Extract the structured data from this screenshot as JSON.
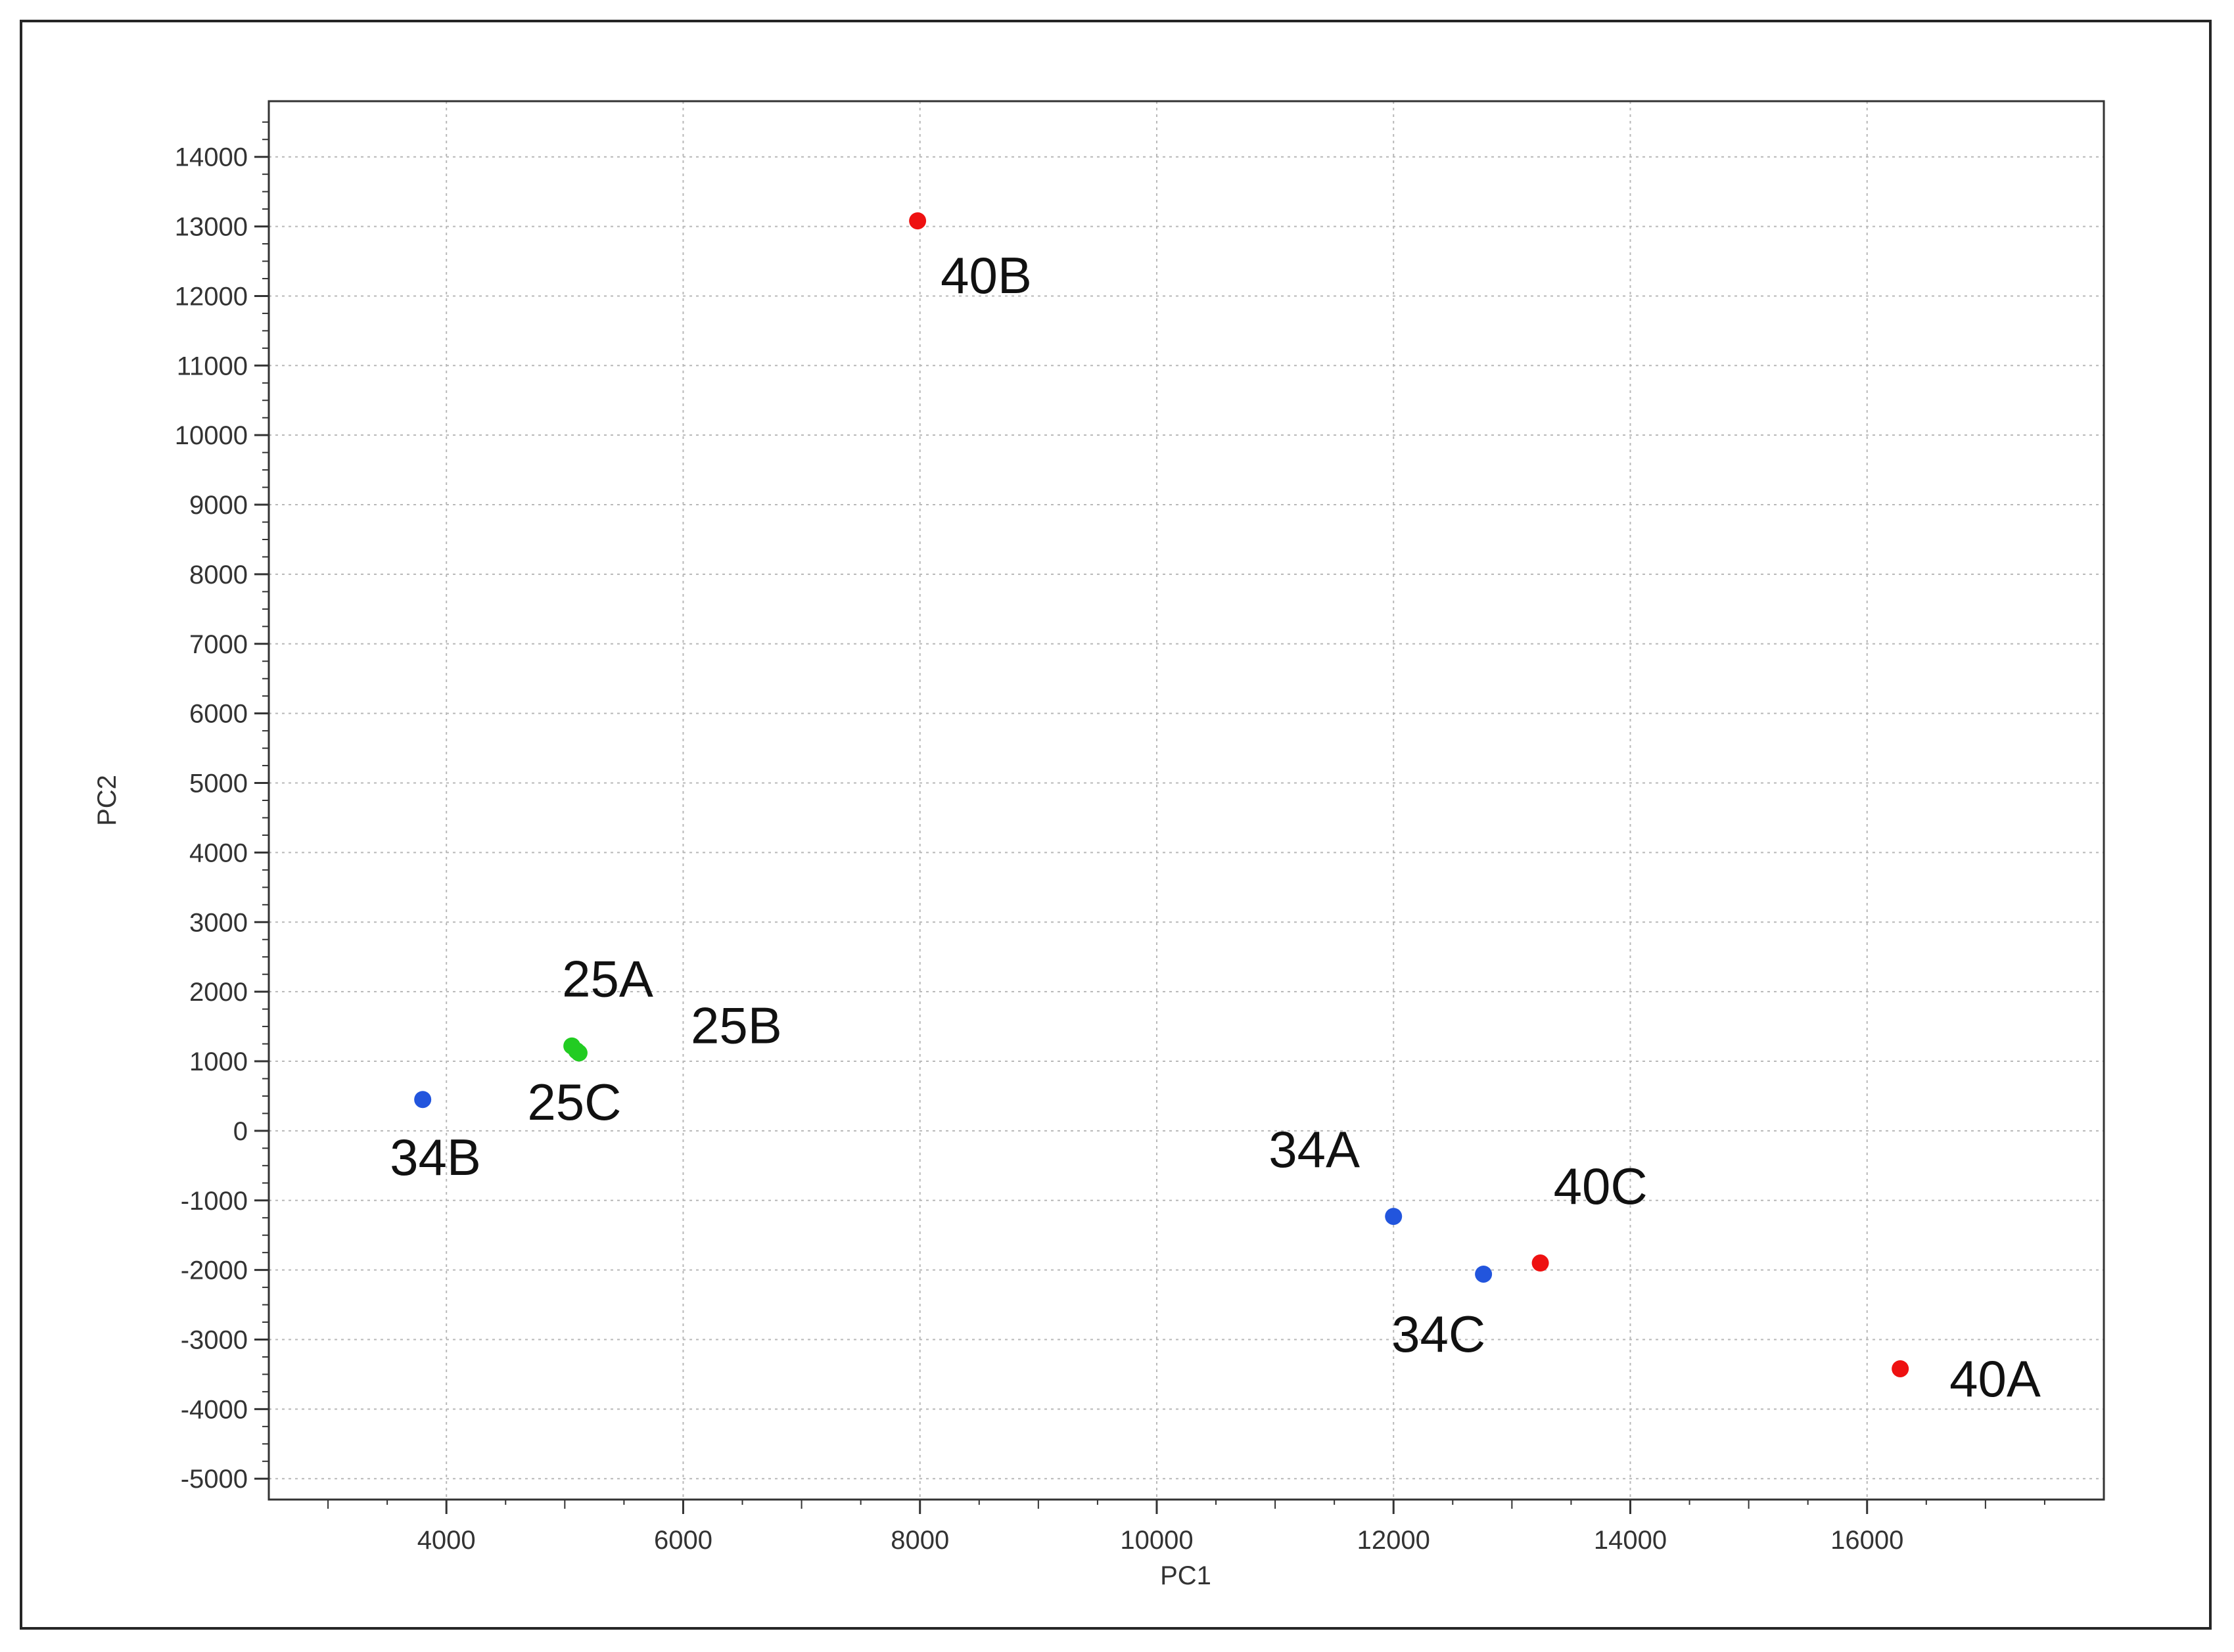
{
  "chart_data": {
    "type": "scatter",
    "xlabel": "PC1",
    "ylabel": "PC2",
    "xlim": [
      2500,
      18000
    ],
    "ylim": [
      -5300,
      14800
    ],
    "x_ticks": [
      4000,
      6000,
      8000,
      10000,
      12000,
      14000,
      16000
    ],
    "y_ticks": [
      -5000,
      -4000,
      -3000,
      -2000,
      -1000,
      0,
      1000,
      2000,
      3000,
      4000,
      5000,
      6000,
      7000,
      8000,
      9000,
      10000,
      11000,
      12000,
      13000,
      14000
    ],
    "grid": true,
    "legend": "none",
    "colors": {
      "red": "#ee1111",
      "blue": "#2255dd",
      "green": "#22cc22"
    },
    "points": [
      {
        "label": "40B",
        "x": 7980,
        "y": 13080,
        "color": "red"
      },
      {
        "label": "25A",
        "x": 5060,
        "y": 1220,
        "color": "green"
      },
      {
        "label": "25B",
        "x": 5120,
        "y": 1120,
        "color": "green"
      },
      {
        "label": "25C",
        "x": 5100,
        "y": 1150,
        "color": "green"
      },
      {
        "label": "34B",
        "x": 3800,
        "y": 450,
        "color": "blue"
      },
      {
        "label": "34A",
        "x": 12000,
        "y": -1230,
        "color": "blue"
      },
      {
        "label": "34C",
        "x": 12760,
        "y": -2060,
        "color": "blue"
      },
      {
        "label": "40C",
        "x": 13240,
        "y": -1900,
        "color": "red"
      },
      {
        "label": "40A",
        "x": 16280,
        "y": -3420,
        "color": "red"
      }
    ]
  }
}
